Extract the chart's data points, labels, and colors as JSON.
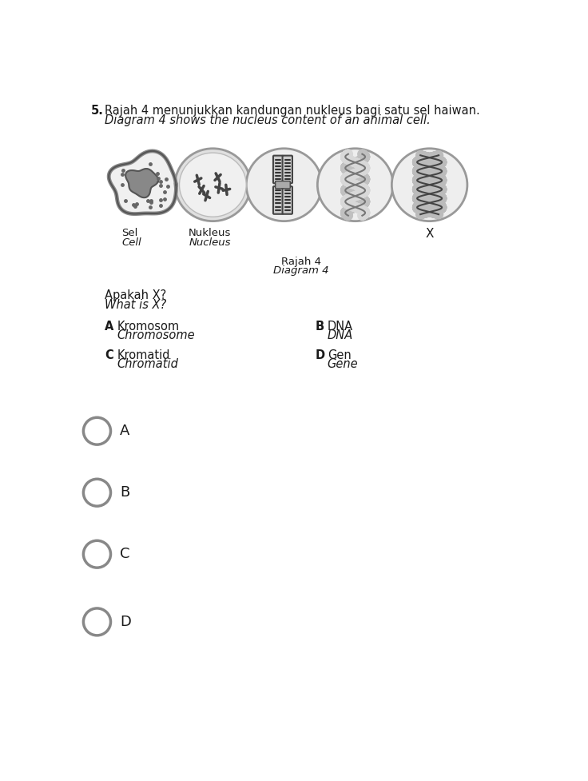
{
  "question_number": "5.",
  "title_malay": "Rajah 4 menunjukkan kandungan nukleus bagi satu sel haiwan.",
  "title_english": "Diagram 4 shows the nucleus content of an animal cell.",
  "question_malay": "Apakah X?",
  "question_english": "What is X?",
  "label_A_malay": "Kromosom",
  "label_A_english": "Chromosome",
  "label_B_malay": "DNA",
  "label_B_english": "DNA",
  "label_C_malay": "Kromatid",
  "label_C_english": "Chromatid",
  "label_D_malay": "Gen",
  "label_D_english": "Gene",
  "diagram_label_malay": "Rajah 4",
  "diagram_label_english": "Diagram 4",
  "cell_label_malay": "Sel",
  "cell_label_english": "Cell",
  "nucleus_label_malay": "Nukleus",
  "nucleus_label_english": "Nucleus",
  "x_label": "X",
  "bg_color": "#ffffff",
  "text_color": "#1a1a1a",
  "circle_fill": "#eeeeee",
  "circle_edge": "#888888",
  "answer_circle_color": "#888888",
  "font_size_title": 10.5,
  "font_size_label": 9.5,
  "font_size_answer": 13
}
